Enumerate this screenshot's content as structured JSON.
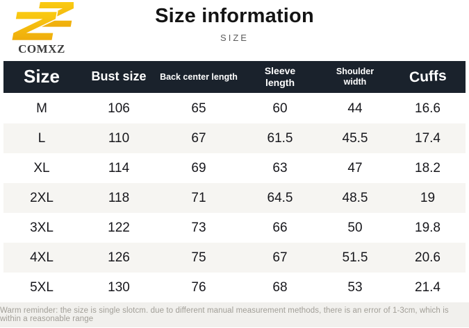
{
  "brand": {
    "name": "COMXZ",
    "logo_icon": "double-z-logo",
    "logo_color": "#F7C310"
  },
  "header": {
    "title": "Size information",
    "subtitle": "SIZE"
  },
  "chart_data": {
    "type": "table",
    "title": "Size information",
    "columns": [
      "Size",
      "Bust size",
      "Back center length",
      "Sleeve length",
      "Shoulder width",
      "Cuffs"
    ],
    "rows": [
      [
        "M",
        "106",
        "65",
        "60",
        "44",
        "16.6"
      ],
      [
        "L",
        "110",
        "67",
        "61.5",
        "45.5",
        "17.4"
      ],
      [
        "XL",
        "114",
        "69",
        "63",
        "47",
        "18.2"
      ],
      [
        "2XL",
        "118",
        "71",
        "64.5",
        "48.5",
        "19"
      ],
      [
        "3XL",
        "122",
        "73",
        "66",
        "50",
        "19.8"
      ],
      [
        "4XL",
        "126",
        "75",
        "67",
        "51.5",
        "20.6"
      ],
      [
        "5XL",
        "130",
        "76",
        "68",
        "53",
        "21.4"
      ]
    ],
    "unit_note": "cm",
    "layout": {
      "header_bg": "#1A222C",
      "header_text": "#FFFFFF",
      "alt_row_bg": "#F6F5F2",
      "row_bg": "#FFFFFF"
    }
  },
  "footer": {
    "note": "Warm reminder: the size is single slotcm. due to different manual measurement methods, there is an error of 1-3cm, which is within a reasonable range"
  }
}
